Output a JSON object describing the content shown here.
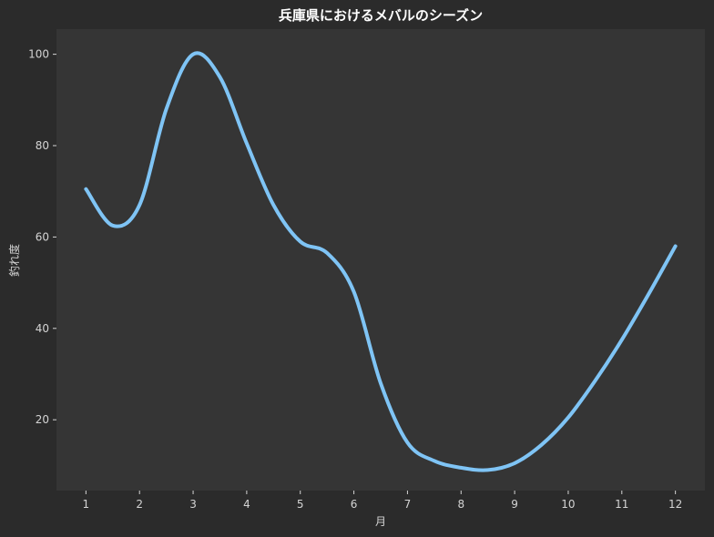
{
  "chart_data": {
    "type": "line",
    "title": "兵庫県におけるメバルのシーズン",
    "xlabel": "月",
    "ylabel": "釣れ度",
    "x": [
      1,
      1.5,
      2,
      2.5,
      3,
      3.5,
      4,
      4.5,
      5,
      5.5,
      6,
      6.5,
      7,
      7.5,
      8,
      8.5,
      9,
      9.5,
      10,
      10.5,
      11,
      11.5,
      12
    ],
    "series": [
      {
        "color": "#7fc4f5",
        "values": [
          70.5,
          62.5,
          67,
          88,
          100,
          95,
          80.5,
          67,
          59,
          56.5,
          48,
          28,
          15,
          11,
          9.5,
          9,
          10.5,
          14.5,
          20.5,
          28.5,
          37.5,
          47.5,
          58
        ]
      }
    ],
    "xlim": [
      0.45,
      12.55
    ],
    "ylim": [
      4.5,
      105.5
    ],
    "xticks": [
      1,
      2,
      3,
      4,
      5,
      6,
      7,
      8,
      9,
      10,
      11,
      12
    ],
    "yticks": [
      20,
      40,
      60,
      80,
      100
    ],
    "grid": false,
    "colors": {
      "figure_bg": "#2b2b2b",
      "plot_bg": "#353535",
      "text": "#d4d4d4",
      "title": "#ffffff"
    }
  }
}
